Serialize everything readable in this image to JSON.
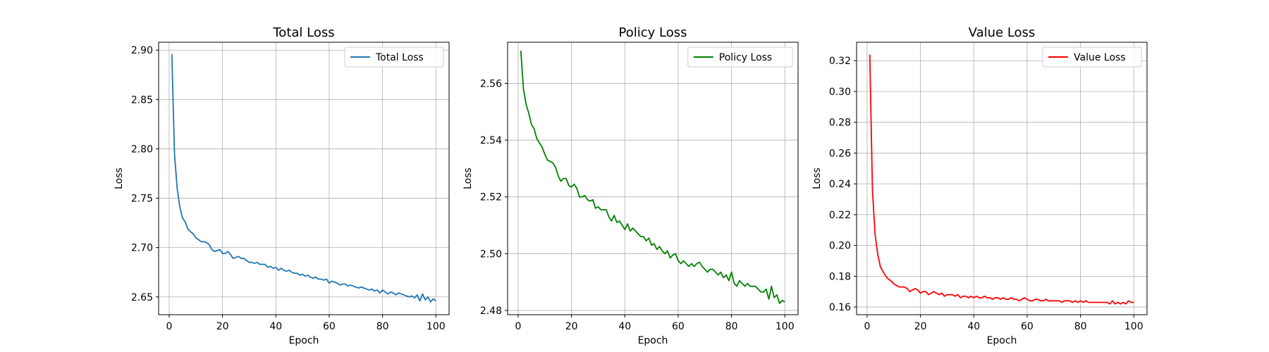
{
  "chart_data": [
    {
      "type": "line",
      "title": "Total Loss",
      "xlabel": "Epoch",
      "ylabel": "Loss",
      "xlim": [
        -3.95,
        104.95
      ],
      "ylim": [
        2.632,
        2.908
      ],
      "xticks": [
        0,
        20,
        40,
        60,
        80,
        100
      ],
      "yticks": [
        2.65,
        2.7,
        2.75,
        2.8,
        2.85,
        2.9
      ],
      "ytick_labels": [
        "2.65",
        "2.70",
        "2.75",
        "2.80",
        "2.85",
        "2.90"
      ],
      "grid": true,
      "legend_position": "upper right",
      "series": [
        {
          "name": "Total Loss",
          "color": "#1f77b4",
          "x_start": 1,
          "values": [
            2.896,
            2.795,
            2.76,
            2.741,
            2.73,
            2.726,
            2.719,
            2.716,
            2.714,
            2.71,
            2.708,
            2.706,
            2.706,
            2.705,
            2.703,
            2.698,
            2.696,
            2.697,
            2.698,
            2.694,
            2.694,
            2.696,
            2.693,
            2.689,
            2.69,
            2.691,
            2.689,
            2.689,
            2.687,
            2.685,
            2.685,
            2.684,
            2.685,
            2.683,
            2.683,
            2.683,
            2.68,
            2.681,
            2.679,
            2.68,
            2.677,
            2.679,
            2.677,
            2.676,
            2.677,
            2.675,
            2.674,
            2.674,
            2.672,
            2.673,
            2.671,
            2.672,
            2.67,
            2.669,
            2.67,
            2.668,
            2.668,
            2.667,
            2.668,
            2.664,
            2.666,
            2.665,
            2.664,
            2.662,
            2.663,
            2.663,
            2.661,
            2.662,
            2.661,
            2.66,
            2.659,
            2.66,
            2.659,
            2.658,
            2.657,
            2.658,
            2.656,
            2.657,
            2.654,
            2.657,
            2.655,
            2.653,
            2.655,
            2.654,
            2.652,
            2.654,
            2.653,
            2.652,
            2.651,
            2.65,
            2.651,
            2.649,
            2.652,
            2.646,
            2.653,
            2.647,
            2.65,
            2.645,
            2.648,
            2.646
          ]
        }
      ]
    },
    {
      "type": "line",
      "title": "Policy Loss",
      "xlabel": "Epoch",
      "ylabel": "Loss",
      "xlim": [
        -3.95,
        104.95
      ],
      "ylim": [
        2.4785,
        2.5745
      ],
      "xticks": [
        0,
        20,
        40,
        60,
        80,
        100
      ],
      "yticks": [
        2.48,
        2.5,
        2.52,
        2.54,
        2.56
      ],
      "ytick_labels": [
        "2.48",
        "2.50",
        "2.52",
        "2.54",
        "2.56"
      ],
      "grid": true,
      "legend_position": "upper right",
      "series": [
        {
          "name": "Policy Loss",
          "color": "#008000",
          "x_start": 1,
          "values": [
            2.5715,
            2.558,
            2.5525,
            2.5495,
            2.5455,
            2.544,
            2.5405,
            2.539,
            2.5375,
            2.535,
            2.533,
            2.5325,
            2.532,
            2.5305,
            2.5275,
            2.5255,
            2.5265,
            2.5265,
            2.524,
            2.5235,
            2.5245,
            2.523,
            2.52,
            2.52,
            2.5205,
            2.519,
            2.5185,
            2.519,
            2.516,
            2.5165,
            2.5155,
            2.5155,
            2.5155,
            2.513,
            2.5115,
            2.5135,
            2.511,
            2.5115,
            2.51,
            2.5085,
            2.5105,
            2.508,
            2.509,
            2.508,
            2.507,
            2.506,
            2.506,
            2.5045,
            2.5055,
            2.503,
            2.5035,
            2.5015,
            2.5025,
            2.501,
            2.5,
            2.501,
            2.4985,
            2.4995,
            2.5,
            2.4975,
            2.4965,
            2.4975,
            2.4965,
            2.4955,
            2.4965,
            2.4955,
            2.4965,
            2.497,
            2.4955,
            2.4945,
            2.4935,
            2.4945,
            2.4945,
            2.4935,
            2.4925,
            2.4935,
            2.4915,
            2.4925,
            2.4905,
            2.4935,
            2.4895,
            2.4885,
            2.4905,
            2.4895,
            2.4885,
            2.4895,
            2.4885,
            2.4885,
            2.4885,
            2.4875,
            2.4865,
            2.4865,
            2.4875,
            2.484,
            2.4885,
            2.4845,
            2.4855,
            2.4825,
            2.4835,
            2.483
          ]
        }
      ]
    },
    {
      "type": "line",
      "title": "Value Loss",
      "xlabel": "Epoch",
      "ylabel": "Loss",
      "xlim": [
        -3.95,
        104.95
      ],
      "ylim": [
        0.155,
        0.332
      ],
      "xticks": [
        0,
        20,
        40,
        60,
        80,
        100
      ],
      "yticks": [
        0.16,
        0.18,
        0.2,
        0.22,
        0.24,
        0.26,
        0.28,
        0.3,
        0.32
      ],
      "ytick_labels": [
        "0.16",
        "0.18",
        "0.20",
        "0.22",
        "0.24",
        "0.26",
        "0.28",
        "0.30",
        "0.32"
      ],
      "grid": true,
      "legend_position": "upper right",
      "series": [
        {
          "name": "Value Loss",
          "color": "#ff0000",
          "x_start": 1,
          "values": [
            0.324,
            0.236,
            0.207,
            0.194,
            0.186,
            0.183,
            0.18,
            0.178,
            0.177,
            0.175,
            0.174,
            0.173,
            0.173,
            0.173,
            0.172,
            0.17,
            0.171,
            0.172,
            0.171,
            0.169,
            0.17,
            0.17,
            0.168,
            0.169,
            0.17,
            0.169,
            0.168,
            0.169,
            0.167,
            0.168,
            0.168,
            0.168,
            0.167,
            0.168,
            0.166,
            0.167,
            0.167,
            0.166,
            0.167,
            0.166,
            0.167,
            0.166,
            0.166,
            0.167,
            0.166,
            0.166,
            0.165,
            0.166,
            0.166,
            0.165,
            0.166,
            0.165,
            0.165,
            0.166,
            0.165,
            0.165,
            0.164,
            0.165,
            0.166,
            0.165,
            0.164,
            0.164,
            0.165,
            0.165,
            0.164,
            0.164,
            0.165,
            0.164,
            0.164,
            0.164,
            0.164,
            0.164,
            0.163,
            0.164,
            0.164,
            0.164,
            0.163,
            0.164,
            0.163,
            0.164,
            0.163,
            0.164,
            0.163,
            0.163,
            0.163,
            0.163,
            0.163,
            0.163,
            0.163,
            0.163,
            0.162,
            0.164,
            0.162,
            0.163,
            0.162,
            0.163,
            0.162,
            0.164,
            0.163,
            0.163
          ]
        }
      ]
    }
  ]
}
